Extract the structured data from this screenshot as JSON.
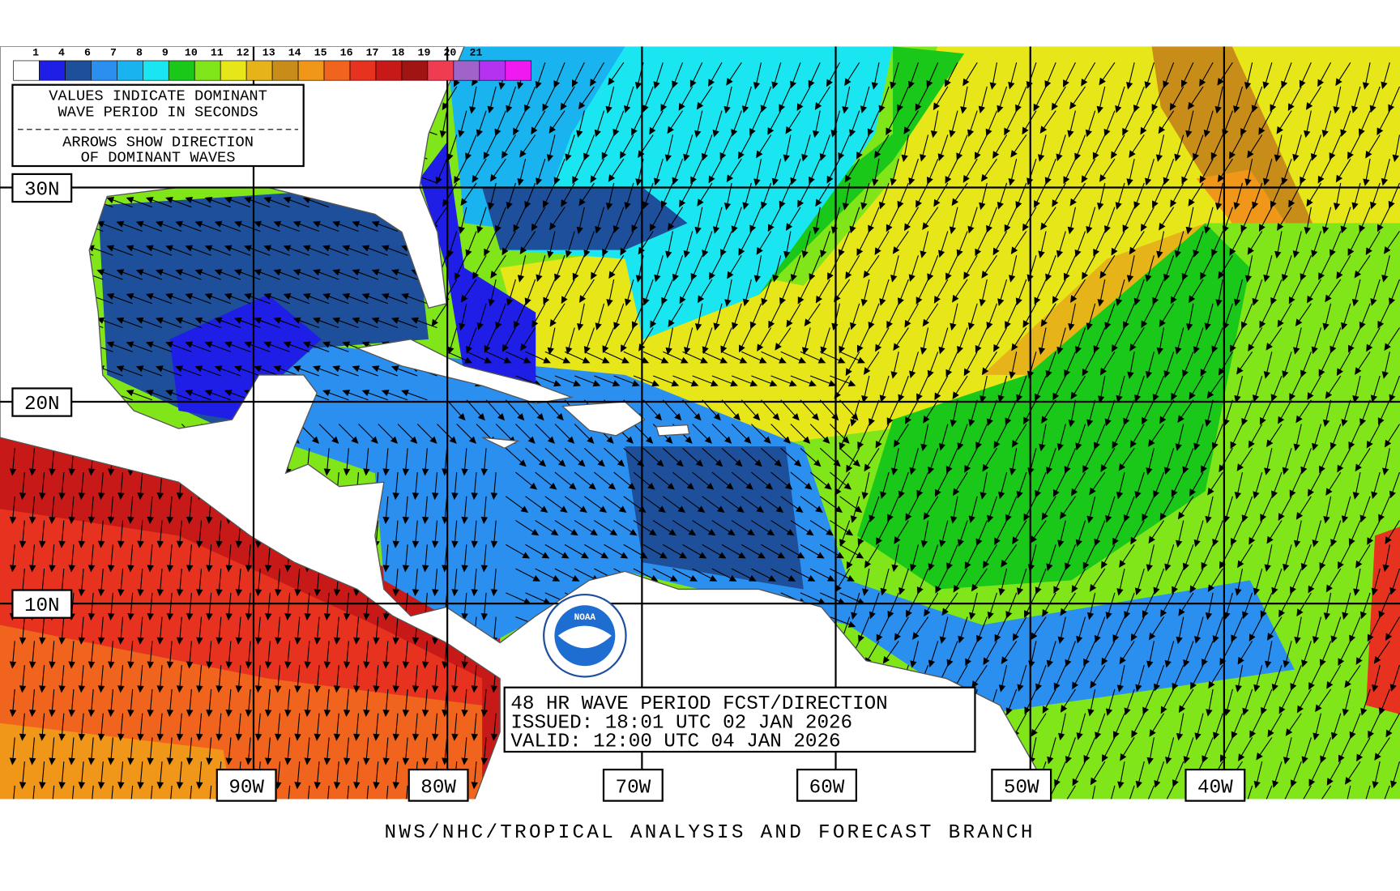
{
  "legend": {
    "labels": [
      "1",
      "4",
      "6",
      "7",
      "8",
      "9",
      "10",
      "11",
      "12",
      "13",
      "14",
      "15",
      "16",
      "17",
      "18",
      "19",
      "20",
      "21"
    ],
    "colors": [
      "#ffffff",
      "#1e1ee6",
      "#1e4f9a",
      "#2b8ff0",
      "#19b4f0",
      "#19e6f0",
      "#19c819",
      "#80e619",
      "#e6e619",
      "#e6b419",
      "#c88c19",
      "#f09619",
      "#f0641e",
      "#e6321e",
      "#c81919",
      "#a01414",
      "#f03c50",
      "#a064c8",
      "#b432f0",
      "#f019f0"
    ]
  },
  "notes": {
    "lines": [
      "VALUES INDICATE DOMINANT",
      "WAVE PERIOD IN SECONDS",
      "ARROWS SHOW DIRECTION",
      "OF DOMINANT WAVES"
    ]
  },
  "latitude_labels": [
    "30N",
    "20N",
    "10N"
  ],
  "longitude_labels": [
    "90W",
    "80W",
    "70W",
    "60W",
    "50W",
    "40W"
  ],
  "info": {
    "lines": [
      "48 HR WAVE PERIOD FCST/DIRECTION",
      "ISSUED:  18:01 UTC 02 JAN 2026",
      "VALID:   12:00 UTC 04 JAN 2026"
    ]
  },
  "logo": "NOAA",
  "footer": "NWS/NHC/TROPICAL ANALYSIS AND FORECAST BRANCH"
}
